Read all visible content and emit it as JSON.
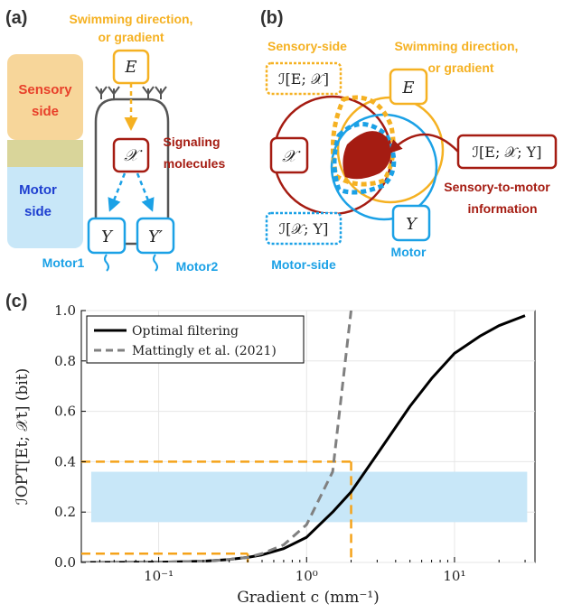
{
  "panels": {
    "a": {
      "label": "(a)",
      "swim_line1": "Swimming direction,",
      "swim_line2": "or gradient",
      "sensory_line1": "Sensory",
      "sensory_line2": "side",
      "motor_line1": "Motor",
      "motor_line2": "side",
      "signal_line1": "Signaling",
      "signal_line2": "molecules",
      "node_E": "E",
      "node_X": "𝒳",
      "node_Y": "Y",
      "node_Yp": "Y′",
      "motor1": "Motor1",
      "motor2": "Motor2"
    },
    "b": {
      "label": "(b)",
      "sensory_side": "Sensory-side",
      "swim_line1": "Swimming direction,",
      "swim_line2": "or gradient",
      "mi_EX": "ℐ[E; 𝒳]",
      "node_E": "E",
      "node_X": "𝒳",
      "node_Y": "Y",
      "mi_EXY": "ℐ[E; 𝒳; Y]",
      "s2m_line1": "Sensory-to-motor",
      "s2m_line2": "information",
      "mi_XY": "ℐ[𝒳; Y]",
      "motor": "Motor",
      "motor_side": "Motor-side"
    },
    "c": {
      "label": "(c)"
    }
  },
  "colors": {
    "orange": "#F5B122",
    "red": "#A51C12",
    "blue": "#1BA1E6",
    "dark_blue": "#1E3FD0",
    "sensory_band": "#F7D69A",
    "motor_band": "#C8E7F8",
    "overlap_band": "#D9D59A"
  },
  "chart_data": {
    "type": "line",
    "ylabel": "ℐOPT[Et; 𝒳t] (bit)",
    "xlabel": "Gradient c (mm⁻¹)",
    "xscale": "log",
    "xlim": [
      0.03,
      35
    ],
    "ylim": [
      0.0,
      1.0
    ],
    "x_ticks": [
      "10⁻¹",
      "10⁰",
      "10¹"
    ],
    "y_ticks": [
      "0.0",
      "0.2",
      "0.4",
      "0.6",
      "0.8",
      "1.0"
    ],
    "grid": true,
    "legend_position": "top-left",
    "series": [
      {
        "name": "Optimal filtering",
        "style": "solid",
        "color": "#000000",
        "points": [
          [
            0.03,
            0.0
          ],
          [
            0.1,
            0.001
          ],
          [
            0.2,
            0.005
          ],
          [
            0.3,
            0.012
          ],
          [
            0.4,
            0.02
          ],
          [
            0.5,
            0.03
          ],
          [
            0.7,
            0.055
          ],
          [
            1.0,
            0.1
          ],
          [
            1.5,
            0.2
          ],
          [
            2.0,
            0.28
          ],
          [
            3.0,
            0.43
          ],
          [
            5.0,
            0.62
          ],
          [
            7.0,
            0.73
          ],
          [
            10.0,
            0.83
          ],
          [
            15.0,
            0.9
          ],
          [
            20.0,
            0.94
          ],
          [
            30.0,
            0.98
          ]
        ]
      },
      {
        "name": "Mattingly et al. (2021)",
        "style": "dashed",
        "color": "#808080",
        "points": [
          [
            0.03,
            0.0
          ],
          [
            0.1,
            0.001
          ],
          [
            0.2,
            0.005
          ],
          [
            0.3,
            0.012
          ],
          [
            0.4,
            0.02
          ],
          [
            0.5,
            0.035
          ],
          [
            0.7,
            0.07
          ],
          [
            1.0,
            0.15
          ],
          [
            1.5,
            0.36
          ],
          [
            2.0,
            1.0
          ]
        ]
      }
    ],
    "annotations": {
      "highlight_band_y": [
        0.16,
        0.36
      ],
      "ref_lines": [
        {
          "x": 0.4,
          "y": 0.035,
          "color": "#F5A31A"
        },
        {
          "x": 2.0,
          "y": 0.4,
          "color": "#F5A31A"
        }
      ]
    }
  }
}
